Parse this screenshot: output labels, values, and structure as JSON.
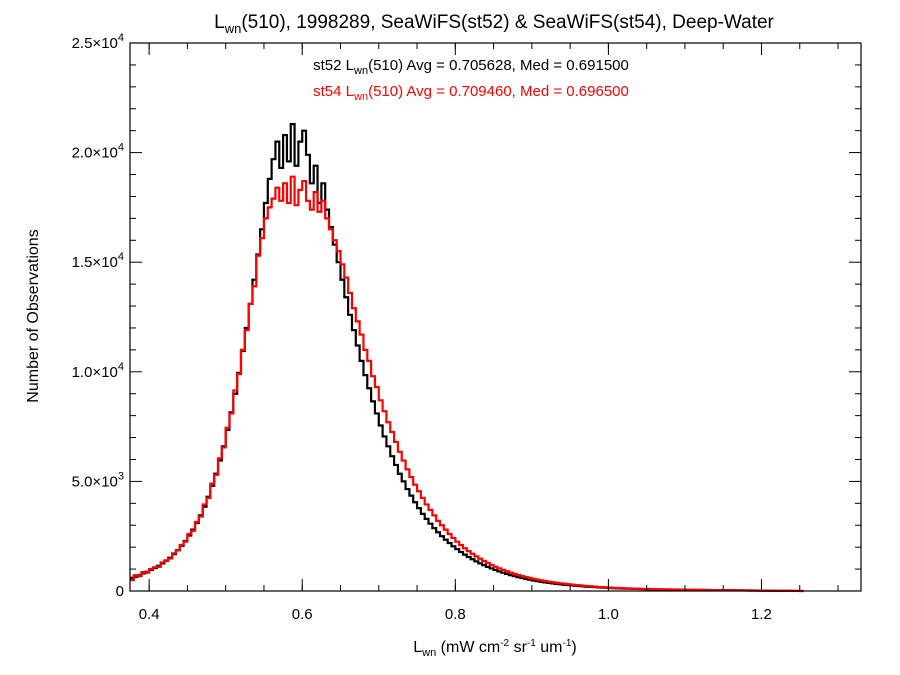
{
  "chart_data": {
    "type": "histogram",
    "title": {
      "lwn": "L",
      "lwn_sub": "wn",
      "rest": "(510), 1998289, SeaWiFS(st52) & SeaWiFS(st54), Deep-Water"
    },
    "xlabel": {
      "main": "L",
      "sub": "wn",
      "p1": " (mW cm",
      "s1": "-2",
      "p2": " sr",
      "s2": "-1",
      "p3": " um",
      "s3": "-1",
      "p4": ")"
    },
    "ylabel": "Number of Observations",
    "xlim": [
      0.375,
      1.33
    ],
    "ylim": [
      0,
      25000
    ],
    "x_ticks": [
      {
        "value": 0.4,
        "label": "0.4"
      },
      {
        "value": 0.6,
        "label": "0.6"
      },
      {
        "value": 0.8,
        "label": "0.8"
      },
      {
        "value": 1.0,
        "label": "1.0"
      },
      {
        "value": 1.2,
        "label": "1.2"
      }
    ],
    "y_ticks": [
      {
        "value": 0,
        "mantissa": "0",
        "exponent": ""
      },
      {
        "value": 5000,
        "mantissa": "5.0×10",
        "exponent": "3"
      },
      {
        "value": 10000,
        "mantissa": "1.0×10",
        "exponent": "4"
      },
      {
        "value": 15000,
        "mantissa": "1.5×10",
        "exponent": "4"
      },
      {
        "value": 20000,
        "mantissa": "2.0×10",
        "exponent": "4"
      },
      {
        "value": 25000,
        "mantissa": "2.5×10",
        "exponent": "4"
      }
    ],
    "bin_width": 0.005,
    "bin_start": 0.375,
    "series": [
      {
        "color": "#000000",
        "stat": {
          "pre": "st52 L",
          "sub": "wn",
          "post": "(510) Avg = 0.705628, Med = 0.691500"
        },
        "values": [
          600,
          650,
          720,
          800,
          880,
          960,
          1050,
          1150,
          1260,
          1380,
          1520,
          1680,
          1860,
          2060,
          2280,
          2530,
          2800,
          3100,
          3450,
          3850,
          4300,
          4800,
          5350,
          5950,
          6600,
          7350,
          8150,
          9000,
          9950,
          10950,
          12000,
          13100,
          14200,
          15350,
          16500,
          17700,
          18800,
          19700,
          20500,
          19300,
          20800,
          19600,
          21300,
          19400,
          20500,
          21000,
          19900,
          18600,
          19400,
          17700,
          18600,
          17400,
          16600,
          15800,
          15000,
          14200,
          13400,
          12600,
          11900,
          11200,
          10500,
          9850,
          9250,
          8650,
          8100,
          7550,
          7050,
          6600,
          6150,
          5750,
          5350,
          5000,
          4650,
          4350,
          4050,
          3780,
          3520,
          3290,
          3070,
          2870,
          2680,
          2500,
          2340,
          2190,
          2040,
          1910,
          1780,
          1660,
          1550,
          1450,
          1350,
          1260,
          1180,
          1100,
          1030,
          960,
          895,
          835,
          780,
          725,
          675,
          630,
          590,
          550,
          515,
          480,
          450,
          420,
          395,
          370,
          345,
          325,
          305,
          285,
          270,
          255,
          240,
          225,
          210,
          195,
          185,
          175,
          165,
          155,
          145,
          135,
          130,
          120,
          115,
          110,
          105,
          100,
          95,
          90,
          85,
          80,
          78,
          75,
          72,
          70,
          68,
          65,
          62,
          60,
          58,
          56,
          54,
          52,
          50,
          48,
          46,
          44,
          42,
          40,
          38,
          36,
          34,
          32,
          30,
          28,
          26,
          24,
          22,
          20,
          18,
          16,
          14,
          12,
          10,
          8,
          6,
          5,
          4,
          3,
          2,
          1
        ]
      },
      {
        "color": "#ff0000",
        "stat": {
          "pre": "st54 L",
          "sub": "wn",
          "post": "(510) Avg = 0.709460, Med = 0.696500"
        },
        "values": [
          500,
          720,
          680,
          860,
          840,
          1000,
          1080,
          1100,
          1300,
          1400,
          1480,
          1720,
          1850,
          2100,
          2250,
          2600,
          2750,
          3150,
          3400,
          3950,
          4250,
          4900,
          5300,
          6050,
          6550,
          7450,
          8100,
          9150,
          9900,
          11000,
          11900,
          13100,
          13900,
          15300,
          16100,
          17000,
          17500,
          17900,
          18400,
          17800,
          18600,
          17700,
          18900,
          17600,
          18300,
          18700,
          17800,
          17400,
          18200,
          17300,
          17800,
          17000,
          16500,
          16000,
          15500,
          14900,
          14300,
          13600,
          12900,
          12300,
          11700,
          11000,
          10500,
          9800,
          9300,
          8700,
          8200,
          7700,
          7250,
          6800,
          6350,
          5950,
          5550,
          5200,
          4850,
          4550,
          4250,
          3950,
          3700,
          3450,
          3200,
          3000,
          2800,
          2600,
          2420,
          2250,
          2100,
          1950,
          1820,
          1700,
          1580,
          1470,
          1370,
          1280,
          1190,
          1110,
          1035,
          965,
          900,
          840,
          785,
          730,
          680,
          635,
          595,
          555,
          520,
          485,
          455,
          425,
          400,
          375,
          350,
          330,
          310,
          290,
          272,
          255,
          240,
          225,
          210,
          198,
          186,
          175,
          165,
          155,
          146,
          138,
          130,
          122,
          115,
          110,
          104,
          99,
          94,
          90,
          86,
          82,
          79,
          76,
          73,
          70,
          67,
          64,
          61,
          58,
          56,
          54,
          52,
          50,
          48,
          46,
          44,
          42,
          40,
          38,
          36,
          34,
          32,
          30,
          28,
          26,
          24,
          22,
          20,
          18,
          16,
          14,
          12,
          10,
          8,
          6,
          5,
          4,
          3,
          2
        ]
      }
    ]
  }
}
